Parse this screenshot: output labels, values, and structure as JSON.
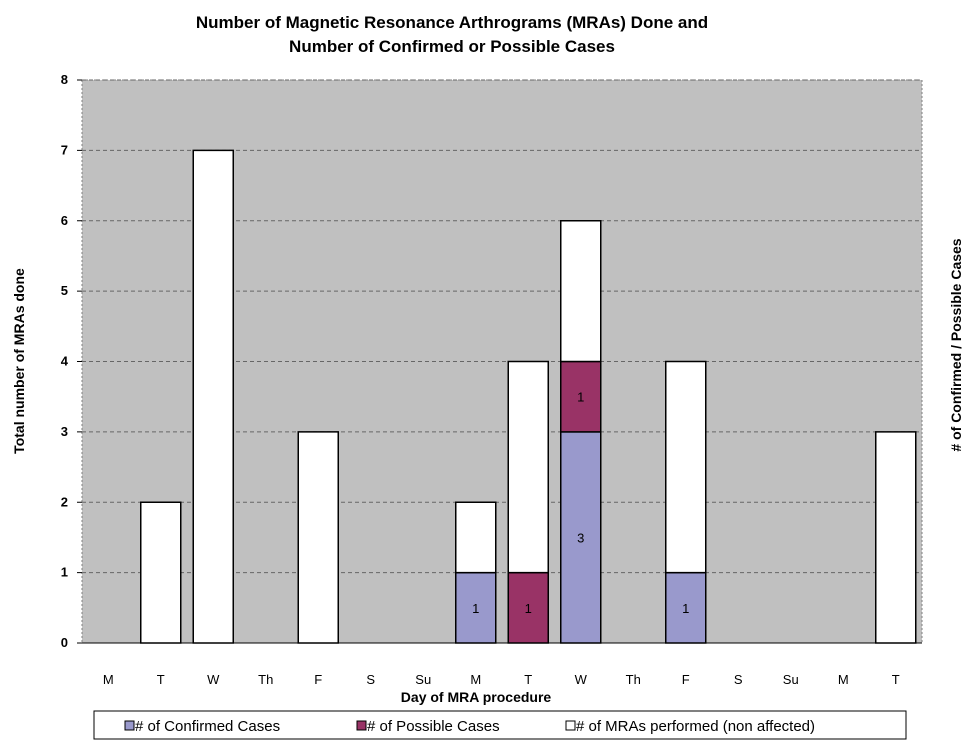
{
  "chart_data": {
    "type": "bar",
    "stacked": true,
    "title_lines": [
      "Number of Magnetic Resonance Arthrograms (MRAs) Done and",
      "Number of Confirmed or Possible Cases"
    ],
    "xlabel": "Day of MRA procedure",
    "ylabel": "Total number of MRAs  done",
    "y2label": "# of Confirmed / Possible Cases",
    "ylim": [
      0,
      8
    ],
    "yticks": [
      "0",
      "1",
      "2",
      "3",
      "4",
      "5",
      "6",
      "7",
      "8"
    ],
    "categories": [
      "M",
      "T",
      "W",
      "Th",
      "F",
      "S",
      "Su",
      "M",
      "T",
      "W",
      "Th",
      "F",
      "S",
      "Su",
      "M",
      "T"
    ],
    "series": [
      {
        "name": "# of Confirmed Cases",
        "color": "#9999cc",
        "values": [
          0,
          0,
          0,
          0,
          0,
          0,
          0,
          1,
          0,
          3,
          0,
          1,
          0,
          0,
          0,
          0
        ],
        "labels": [
          "",
          "",
          "",
          "",
          "",
          "",
          "",
          "1",
          "",
          "3",
          "",
          "1",
          "",
          "",
          "",
          ""
        ]
      },
      {
        "name": "# of Possible Cases",
        "color": "#993366",
        "values": [
          0,
          0,
          0,
          0,
          0,
          0,
          0,
          0,
          1,
          1,
          0,
          0,
          0,
          0,
          0,
          0
        ],
        "labels": [
          "",
          "",
          "",
          "",
          "",
          "",
          "",
          "",
          "1",
          "1",
          "",
          "",
          "",
          "",
          "",
          ""
        ]
      },
      {
        "name": "# of MRAs performed (non affected)",
        "color": "#ffffff",
        "values": [
          0,
          2,
          7,
          0,
          3,
          0,
          0,
          1,
          3,
          2,
          0,
          3,
          0,
          0,
          0,
          3
        ],
        "labels": []
      }
    ],
    "plot_background": "#c0c0c0",
    "grid": true,
    "grid_style": "dashed",
    "legend_position": "bottom"
  }
}
